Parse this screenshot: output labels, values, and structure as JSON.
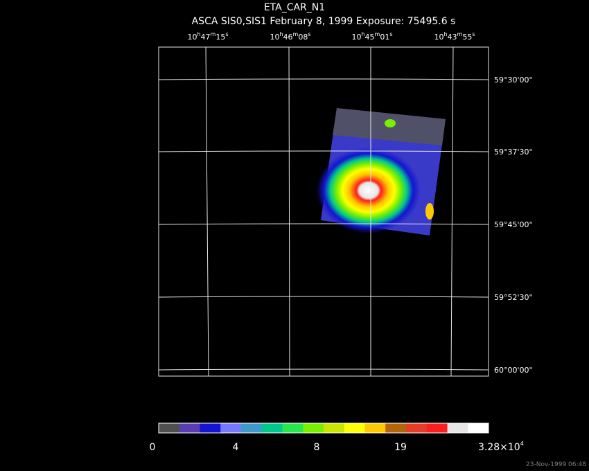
{
  "header": {
    "title": "ETA_CAR_N1",
    "subtitle": "ASCA SIS0,SIS1 February 8, 1999 Exposure: 75495.6 s"
  },
  "ra_labels": [
    [
      "10",
      "h",
      "47",
      "m",
      "15",
      "s"
    ],
    [
      "10",
      "h",
      "46",
      "m",
      "08",
      "s"
    ],
    [
      "10",
      "h",
      "45",
      "m",
      "01",
      "s"
    ],
    [
      "10",
      "h",
      "43",
      "m",
      "55",
      "s"
    ]
  ],
  "dec_labels": [
    "59°30'00\"",
    "59°37'30\"",
    "59°45'00\"",
    "59°52'30\"",
    "60°00'00\""
  ],
  "colorbar": {
    "colors": [
      "#505050",
      "#5a3cb4",
      "#1414d2",
      "#7878ff",
      "#3c9bc8",
      "#00c88c",
      "#28e650",
      "#78f000",
      "#c8e600",
      "#ffff00",
      "#ffc800",
      "#b4640a",
      "#e63c28",
      "#ff1e1e",
      "#e6e6e6",
      "#ffffff"
    ],
    "labels": [
      "0",
      "4",
      "8",
      "19"
    ],
    "max_label": [
      "3.28×10",
      "4"
    ]
  },
  "footer": "23-Nov-1999 06:48"
}
